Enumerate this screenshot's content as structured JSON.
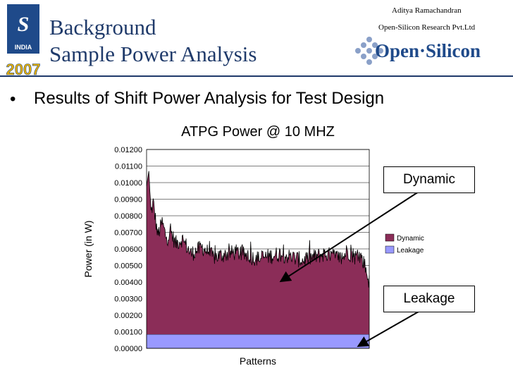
{
  "header": {
    "title_line1": "Background",
    "title_line2": "Sample Power Analysis",
    "author": "Aditya Ramachandran",
    "company": "Open-Silicon Research Pvt.Ltd",
    "logo_snug": {
      "text": "SNUG",
      "country": "INDIA",
      "year": "2007"
    },
    "logo_open_silicon": "Open·Silicon"
  },
  "bullet": {
    "marker": "•",
    "text": "Results of Shift Power Analysis for Test Design"
  },
  "callouts": {
    "dynamic": "Dynamic",
    "leakage": "Leakage"
  },
  "colors": {
    "dynamic": "#8b2d58",
    "leakage": "#9999ff",
    "title": "#1f3a6a"
  },
  "chart_data": {
    "type": "area",
    "stacked": true,
    "title": "ATPG Power @ 10 MHZ",
    "xlabel": "Patterns",
    "ylabel": "Power (in W)",
    "ylim": [
      0,
      0.012
    ],
    "yticks": [
      "0.00000",
      "0.00100",
      "0.00200",
      "0.00300",
      "0.00400",
      "0.00500",
      "0.00600",
      "0.00700",
      "0.00800",
      "0.00900",
      "0.01000",
      "0.01100",
      "0.01200"
    ],
    "grid": true,
    "legend_position": "right",
    "series": [
      {
        "name": "Leakage",
        "constant": 0.00085
      },
      {
        "name": "Dynamic",
        "profile": [
          [
            0,
            0.0098
          ],
          [
            1,
            0.0107
          ],
          [
            2,
            0.0082
          ],
          [
            3,
            0.0088
          ],
          [
            5,
            0.0068
          ],
          [
            7,
            0.0076
          ],
          [
            9,
            0.0066
          ],
          [
            11,
            0.007
          ],
          [
            13,
            0.0063
          ],
          [
            16,
            0.0066
          ],
          [
            20,
            0.0057
          ],
          [
            25,
            0.0061
          ],
          [
            30,
            0.0055
          ],
          [
            40,
            0.0058
          ],
          [
            50,
            0.0054
          ],
          [
            60,
            0.0057
          ],
          [
            70,
            0.0053
          ],
          [
            80,
            0.0057
          ],
          [
            88,
            0.0054
          ],
          [
            90,
            0.0059
          ],
          [
            93,
            0.0055
          ],
          [
            96,
            0.0056
          ],
          [
            98,
            0.005
          ],
          [
            100,
            0.004
          ]
        ]
      }
    ],
    "legend": [
      "Dynamic",
      "Leakage"
    ]
  }
}
